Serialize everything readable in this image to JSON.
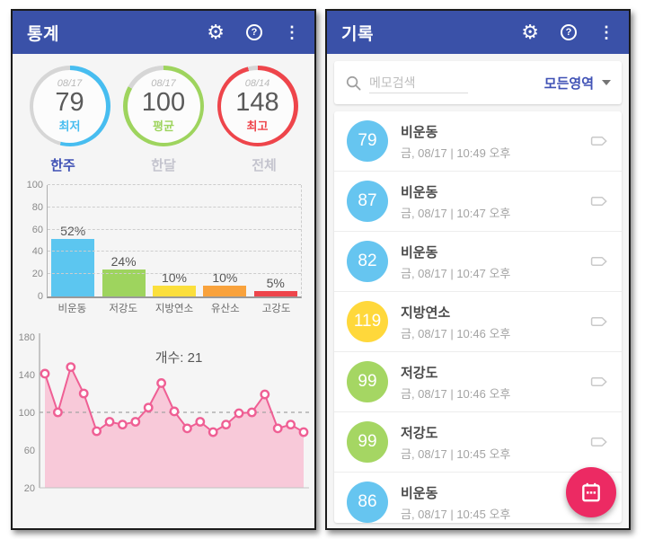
{
  "colors": {
    "appbar": "#3a51a8",
    "accent_indigo": "#3f51b5",
    "ring_track": "#d6d6d6",
    "blue": "#5cc6f0",
    "green": "#9ed45e",
    "yellow": "#fbdf3c",
    "orange": "#f9a23c",
    "red": "#ee454b",
    "list_blue": "#66c5f0",
    "list_green": "#a5d663",
    "list_yellow": "#ffd83b",
    "pink_line": "#ef5f94",
    "pink_fill": "#f8c9d9",
    "fab_pink": "#ec2a63"
  },
  "left_screen": {
    "app_bar": {
      "title": "통계",
      "icons": [
        "settings-gear",
        "help",
        "overflow-menu"
      ]
    },
    "summary_circles": [
      {
        "date": "08/17",
        "value": "79",
        "label": "최저",
        "color": "#47bdf0",
        "arc_percent": 54
      },
      {
        "date": "08/17",
        "value": "100",
        "label": "평균",
        "color": "#9ed45e",
        "arc_percent": 83
      },
      {
        "date": "08/14",
        "value": "148",
        "label": "최고",
        "color": "#ee454b",
        "arc_percent": 96
      }
    ],
    "tabs": [
      {
        "label": "한주",
        "active": true
      },
      {
        "label": "한달",
        "active": false
      },
      {
        "label": "전체",
        "active": false
      }
    ]
  },
  "right_screen": {
    "app_bar": {
      "title": "기록",
      "icons": [
        "settings-gear",
        "help",
        "overflow-menu"
      ]
    },
    "search": {
      "placeholder": "메모검색",
      "filter_label": "모든영역"
    },
    "records": [
      {
        "value": "79",
        "color": "blue",
        "title": "비운동",
        "datetime": "금, 08/17 | 10:49 오후"
      },
      {
        "value": "87",
        "color": "blue",
        "title": "비운동",
        "datetime": "금, 08/17 | 10:47 오후"
      },
      {
        "value": "82",
        "color": "blue",
        "title": "비운동",
        "datetime": "금, 08/17 | 10:47 오후"
      },
      {
        "value": "119",
        "color": "yellow",
        "title": "지방연소",
        "datetime": "금, 08/17 | 10:46 오후"
      },
      {
        "value": "99",
        "color": "green",
        "title": "저강도",
        "datetime": "금, 08/17 | 10:46 오후"
      },
      {
        "value": "99",
        "color": "green",
        "title": "저강도",
        "datetime": "금, 08/17 | 10:45 오후"
      },
      {
        "value": "86",
        "color": "blue",
        "title": "비운동",
        "datetime": "금, 08/17 | 10:45 오후"
      }
    ]
  },
  "chart_data": [
    {
      "type": "bar",
      "categories": [
        "비운동",
        "저강도",
        "지방연소",
        "유산소",
        "고강도"
      ],
      "values": [
        52,
        24,
        10,
        10,
        5
      ],
      "value_labels": [
        "52%",
        "24%",
        "10%",
        "10%",
        "5%"
      ],
      "bar_colors": [
        "#5cc6f0",
        "#9ed45e",
        "#fbdf3c",
        "#f9a23c",
        "#ee454b"
      ],
      "title": "",
      "xlabel": "",
      "ylabel": "",
      "ylim": [
        0,
        100
      ],
      "yticks": [
        0,
        20,
        40,
        60,
        80,
        100
      ],
      "grid": "dashed horizontal"
    },
    {
      "type": "line",
      "x": [
        1,
        2,
        3,
        4,
        5,
        6,
        7,
        8,
        9,
        10,
        11,
        12,
        13,
        14,
        15,
        16,
        17,
        18,
        19,
        20,
        21
      ],
      "values": [
        141,
        100,
        148,
        120,
        80,
        90,
        87,
        90,
        105,
        131,
        101,
        83,
        90,
        79,
        87,
        99,
        100,
        119,
        83,
        87,
        79
      ],
      "count_label": "개수: 21",
      "title": "",
      "xlabel": "",
      "ylabel": "",
      "ylim": [
        20,
        180
      ],
      "yticks": [
        20,
        60,
        100,
        140,
        180
      ],
      "reference_line": 100,
      "style": "area filled pink with circle markers"
    }
  ]
}
